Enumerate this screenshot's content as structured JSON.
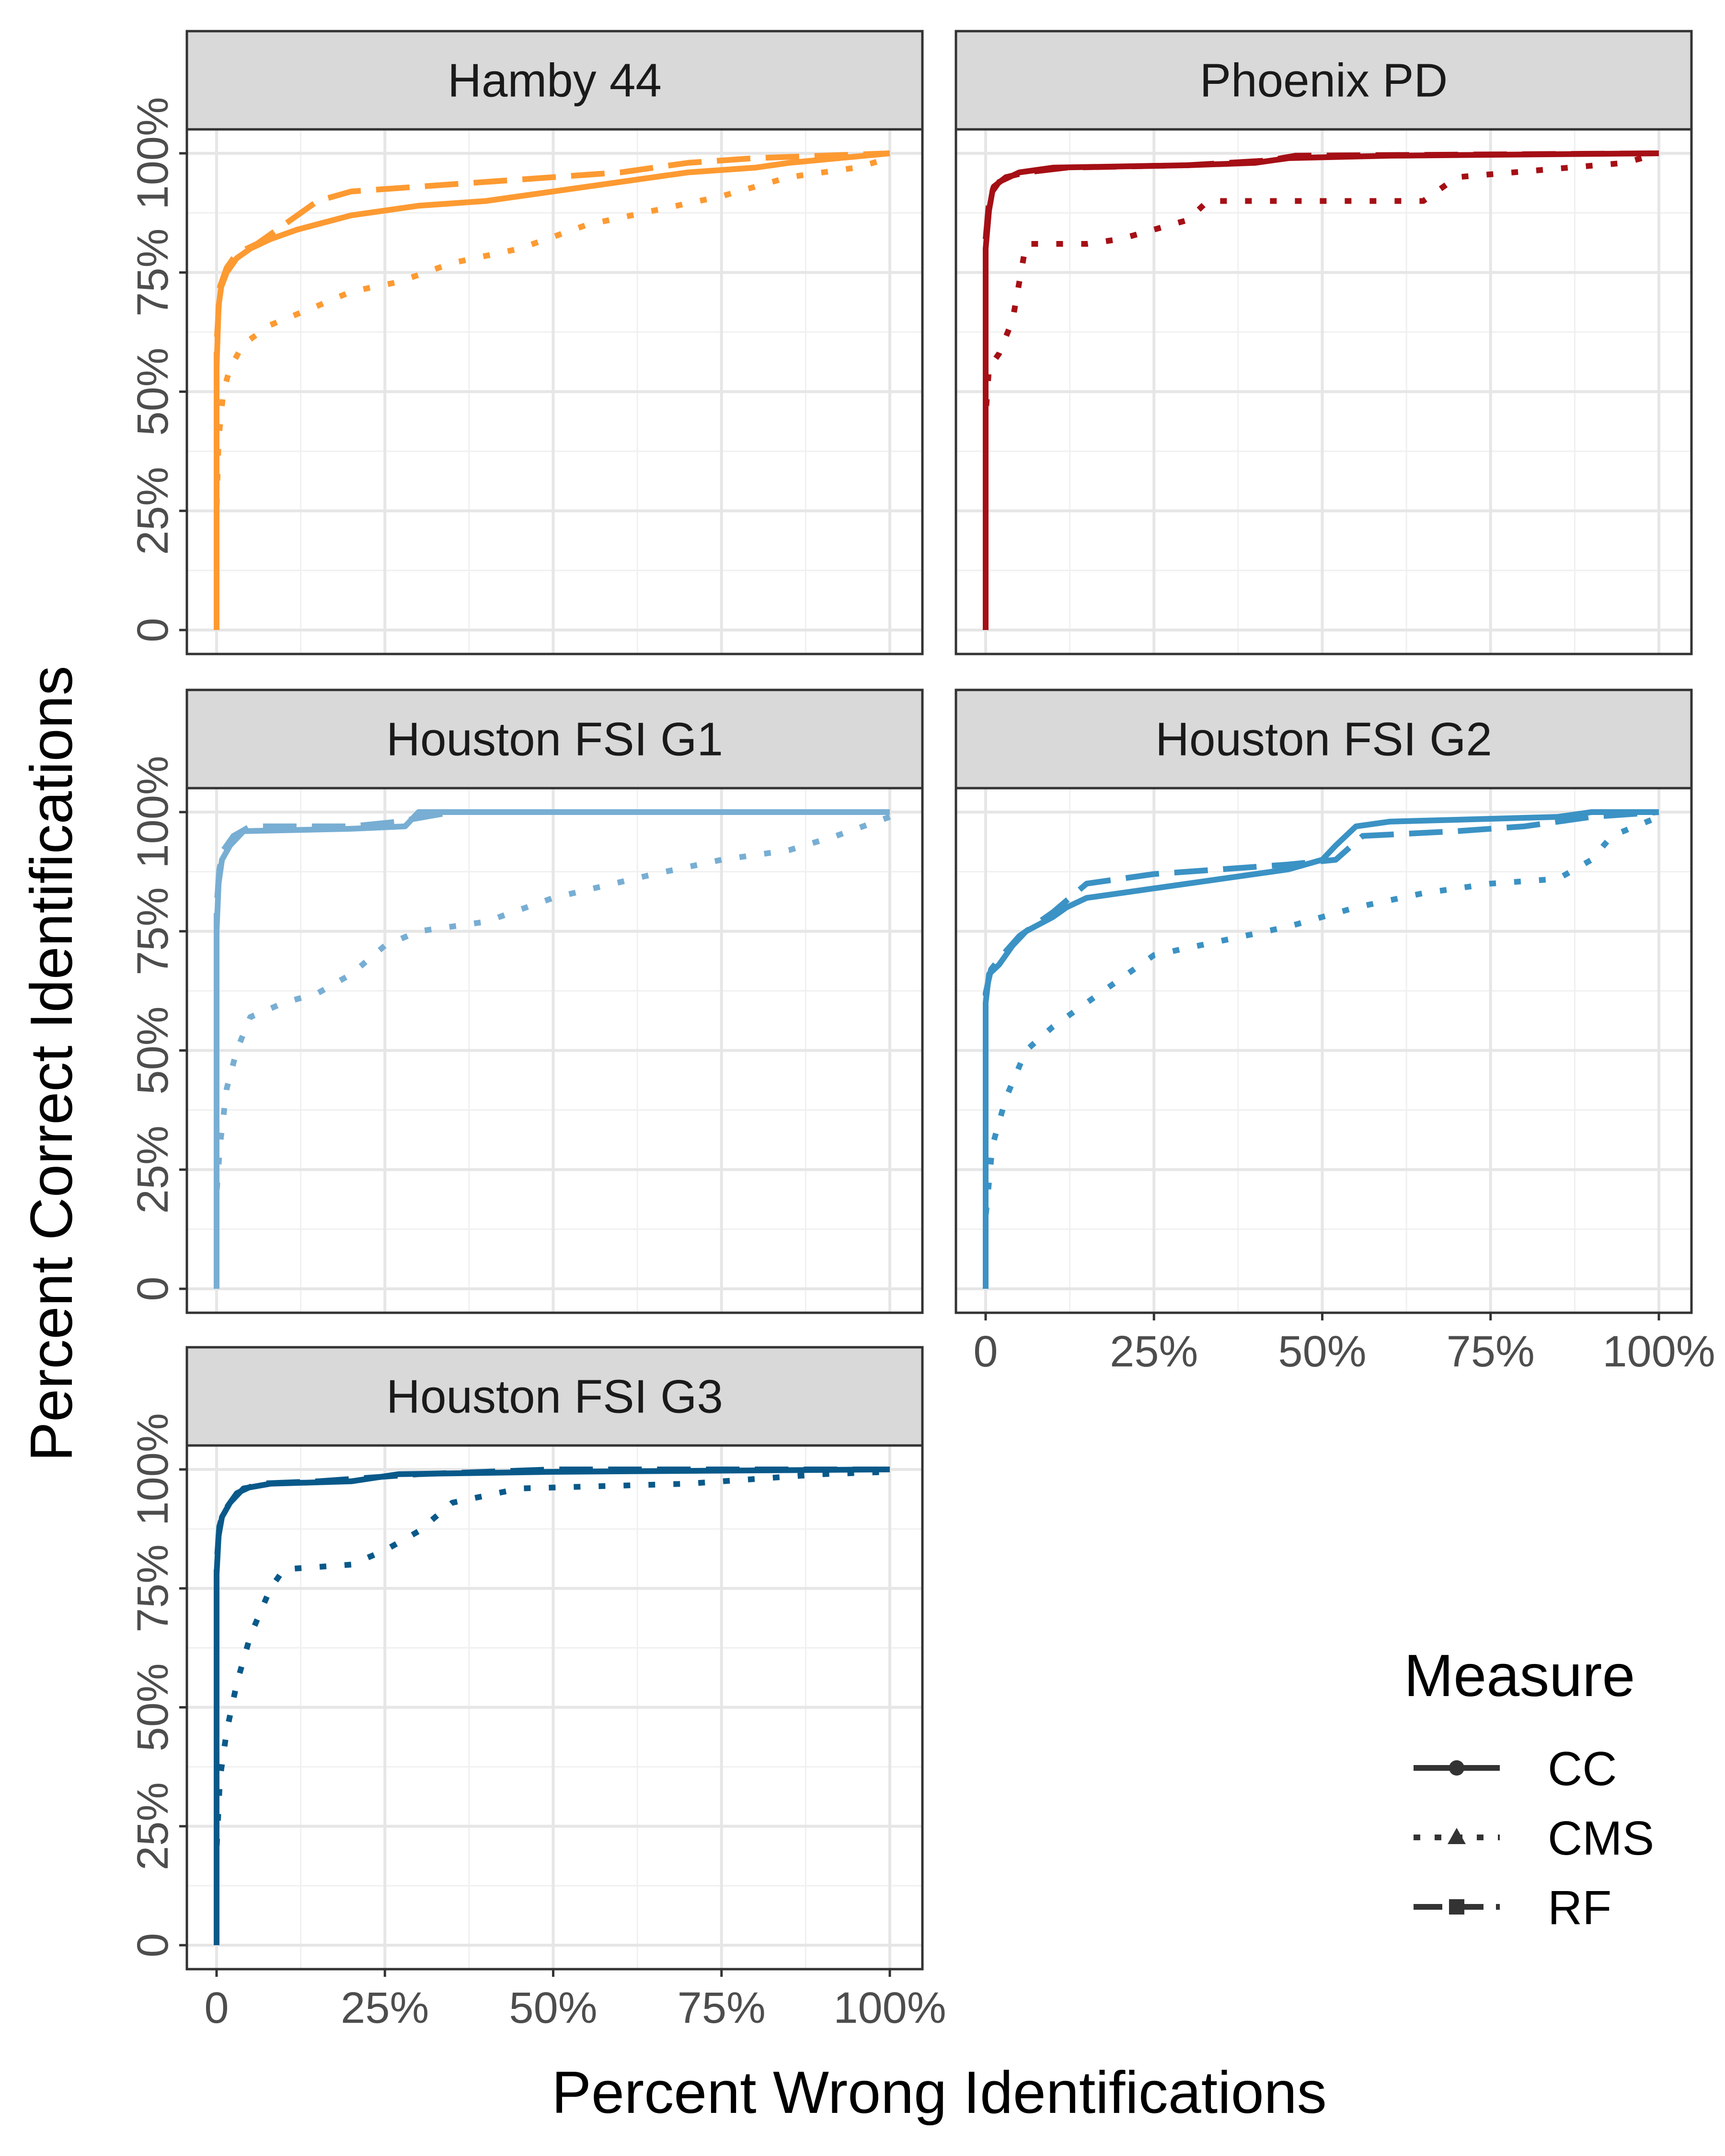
{
  "chart_data": {
    "type": "line",
    "xlabel": "Percent Wrong Identifications",
    "ylabel": "Percent Correct Identifications",
    "xlim": [
      0,
      1
    ],
    "ylim": [
      0,
      1
    ],
    "x_tick_values": [
      0,
      0.25,
      0.5,
      0.75,
      1
    ],
    "x_tick_labels": [
      "0",
      "25%",
      "50%",
      "75%",
      "100%"
    ],
    "y_tick_values": [
      0,
      0.25,
      0.5,
      0.75,
      1
    ],
    "y_tick_labels": [
      "0",
      "25%",
      "50%",
      "75%",
      "100%"
    ],
    "grid": true,
    "legend": {
      "title": "Measure",
      "position": "bottom-right",
      "entries": [
        {
          "label": "CC",
          "linestyle": "solid",
          "marker": "circle"
        },
        {
          "label": "CMS",
          "linestyle": "dotted",
          "marker": "triangle"
        },
        {
          "label": "RF",
          "linestyle": "dashed",
          "marker": "square"
        }
      ]
    },
    "panels": [
      {
        "title": "Hamby 44",
        "color": "#FD9A32",
        "series": [
          {
            "name": "CC",
            "points": [
              [
                0,
                0
              ],
              [
                0,
                0.55
              ],
              [
                0.003,
                0.68
              ],
              [
                0.007,
                0.72
              ],
              [
                0.015,
                0.75
              ],
              [
                0.03,
                0.78
              ],
              [
                0.05,
                0.8
              ],
              [
                0.08,
                0.82
              ],
              [
                0.12,
                0.84
              ],
              [
                0.2,
                0.87
              ],
              [
                0.3,
                0.89
              ],
              [
                0.4,
                0.9
              ],
              [
                0.5,
                0.92
              ],
              [
                0.6,
                0.94
              ],
              [
                0.7,
                0.96
              ],
              [
                0.8,
                0.97
              ],
              [
                0.85,
                0.98
              ],
              [
                1,
                1
              ]
            ]
          },
          {
            "name": "CMS",
            "points": [
              [
                0,
                0
              ],
              [
                0,
                0.25
              ],
              [
                0.003,
                0.4
              ],
              [
                0.01,
                0.5
              ],
              [
                0.02,
                0.55
              ],
              [
                0.04,
                0.6
              ],
              [
                0.08,
                0.64
              ],
              [
                0.15,
                0.68
              ],
              [
                0.2,
                0.71
              ],
              [
                0.27,
                0.73
              ],
              [
                0.35,
                0.77
              ],
              [
                0.45,
                0.8
              ],
              [
                0.55,
                0.85
              ],
              [
                0.65,
                0.88
              ],
              [
                0.75,
                0.91
              ],
              [
                0.85,
                0.95
              ],
              [
                0.95,
                0.97
              ],
              [
                1,
                0.99
              ]
            ]
          },
          {
            "name": "RF",
            "points": [
              [
                0,
                0
              ],
              [
                0,
                0.6
              ],
              [
                0.005,
                0.72
              ],
              [
                0.015,
                0.76
              ],
              [
                0.03,
                0.79
              ],
              [
                0.06,
                0.81
              ],
              [
                0.1,
                0.85
              ],
              [
                0.15,
                0.9
              ],
              [
                0.2,
                0.92
              ],
              [
                0.3,
                0.93
              ],
              [
                0.4,
                0.94
              ],
              [
                0.5,
                0.95
              ],
              [
                0.6,
                0.96
              ],
              [
                0.7,
                0.98
              ],
              [
                0.8,
                0.99
              ],
              [
                1,
                1
              ]
            ]
          }
        ]
      },
      {
        "title": "Phoenix PD",
        "color": "#A50F15",
        "series": [
          {
            "name": "CC",
            "points": [
              [
                0,
                0
              ],
              [
                0,
                0.8
              ],
              [
                0.005,
                0.88
              ],
              [
                0.01,
                0.92
              ],
              [
                0.02,
                0.94
              ],
              [
                0.05,
                0.96
              ],
              [
                0.1,
                0.97
              ],
              [
                0.3,
                0.975
              ],
              [
                0.4,
                0.98
              ],
              [
                0.45,
                0.99
              ],
              [
                0.6,
                0.995
              ],
              [
                1,
                1
              ]
            ]
          },
          {
            "name": "CMS",
            "points": [
              [
                0,
                0
              ],
              [
                0,
                0.45
              ],
              [
                0.005,
                0.55
              ],
              [
                0.02,
                0.58
              ],
              [
                0.04,
                0.65
              ],
              [
                0.06,
                0.81
              ],
              [
                0.15,
                0.81
              ],
              [
                0.2,
                0.82
              ],
              [
                0.3,
                0.86
              ],
              [
                0.33,
                0.9
              ],
              [
                0.65,
                0.9
              ],
              [
                0.7,
                0.95
              ],
              [
                0.95,
                0.98
              ],
              [
                1,
                1
              ]
            ]
          },
          {
            "name": "RF",
            "points": [
              [
                0,
                0
              ],
              [
                0,
                0.82
              ],
              [
                0.005,
                0.9
              ],
              [
                0.012,
                0.93
              ],
              [
                0.03,
                0.95
              ],
              [
                0.06,
                0.96
              ],
              [
                0.12,
                0.97
              ],
              [
                0.3,
                0.975
              ],
              [
                0.42,
                0.985
              ],
              [
                0.46,
                0.995
              ],
              [
                1,
                1
              ]
            ]
          }
        ]
      },
      {
        "title": "Houston FSI G1",
        "color": "#78AED3",
        "series": [
          {
            "name": "CC",
            "points": [
              [
                0,
                0
              ],
              [
                0,
                0.75
              ],
              [
                0.003,
                0.85
              ],
              [
                0.008,
                0.9
              ],
              [
                0.02,
                0.93
              ],
              [
                0.04,
                0.96
              ],
              [
                0.2,
                0.965
              ],
              [
                0.28,
                0.97
              ],
              [
                0.3,
                1
              ],
              [
                1,
                1
              ]
            ]
          },
          {
            "name": "CMS",
            "points": [
              [
                0,
                0
              ],
              [
                0,
                0.2
              ],
              [
                0.005,
                0.3
              ],
              [
                0.015,
                0.42
              ],
              [
                0.03,
                0.5
              ],
              [
                0.05,
                0.57
              ],
              [
                0.1,
                0.6
              ],
              [
                0.15,
                0.62
              ],
              [
                0.2,
                0.66
              ],
              [
                0.25,
                0.72
              ],
              [
                0.3,
                0.75
              ],
              [
                0.4,
                0.77
              ],
              [
                0.5,
                0.82
              ],
              [
                0.65,
                0.87
              ],
              [
                0.75,
                0.9
              ],
              [
                0.85,
                0.92
              ],
              [
                0.92,
                0.95
              ],
              [
                1,
                0.99
              ]
            ]
          },
          {
            "name": "RF",
            "points": [
              [
                0,
                0
              ],
              [
                0,
                0.8
              ],
              [
                0.004,
                0.88
              ],
              [
                0.01,
                0.92
              ],
              [
                0.025,
                0.95
              ],
              [
                0.05,
                0.97
              ],
              [
                0.2,
                0.97
              ],
              [
                0.27,
                0.98
              ],
              [
                0.35,
                1
              ],
              [
                1,
                1
              ]
            ]
          }
        ]
      },
      {
        "title": "Houston FSI G2",
        "color": "#3B92C4",
        "series": [
          {
            "name": "CC",
            "points": [
              [
                0,
                0
              ],
              [
                0,
                0.6
              ],
              [
                0.005,
                0.66
              ],
              [
                0.02,
                0.68
              ],
              [
                0.04,
                0.72
              ],
              [
                0.06,
                0.75
              ],
              [
                0.1,
                0.78
              ],
              [
                0.12,
                0.8
              ],
              [
                0.15,
                0.82
              ],
              [
                0.25,
                0.84
              ],
              [
                0.35,
                0.86
              ],
              [
                0.45,
                0.88
              ],
              [
                0.5,
                0.9
              ],
              [
                0.52,
                0.93
              ],
              [
                0.55,
                0.97
              ],
              [
                0.6,
                0.98
              ],
              [
                0.85,
                0.99
              ],
              [
                0.9,
                1
              ],
              [
                1,
                1
              ]
            ]
          },
          {
            "name": "CMS",
            "points": [
              [
                0,
                0
              ],
              [
                0,
                0.15
              ],
              [
                0.01,
                0.3
              ],
              [
                0.03,
                0.4
              ],
              [
                0.06,
                0.5
              ],
              [
                0.1,
                0.55
              ],
              [
                0.15,
                0.6
              ],
              [
                0.2,
                0.65
              ],
              [
                0.25,
                0.7
              ],
              [
                0.35,
                0.73
              ],
              [
                0.45,
                0.76
              ],
              [
                0.55,
                0.8
              ],
              [
                0.65,
                0.83
              ],
              [
                0.75,
                0.85
              ],
              [
                0.85,
                0.86
              ],
              [
                0.9,
                0.9
              ],
              [
                0.93,
                0.95
              ],
              [
                1,
                0.99
              ]
            ]
          },
          {
            "name": "RF",
            "points": [
              [
                0,
                0
              ],
              [
                0,
                0.62
              ],
              [
                0.008,
                0.67
              ],
              [
                0.025,
                0.7
              ],
              [
                0.05,
                0.74
              ],
              [
                0.1,
                0.79
              ],
              [
                0.15,
                0.85
              ],
              [
                0.25,
                0.87
              ],
              [
                0.35,
                0.88
              ],
              [
                0.45,
                0.89
              ],
              [
                0.52,
                0.9
              ],
              [
                0.56,
                0.95
              ],
              [
                0.7,
                0.96
              ],
              [
                0.8,
                0.97
              ],
              [
                0.85,
                0.98
              ],
              [
                0.9,
                0.99
              ],
              [
                1,
                1
              ]
            ]
          }
        ]
      },
      {
        "title": "Houston FSI G3",
        "color": "#08598A",
        "series": [
          {
            "name": "CC",
            "points": [
              [
                0,
                0
              ],
              [
                0,
                0.78
              ],
              [
                0.003,
                0.86
              ],
              [
                0.008,
                0.9
              ],
              [
                0.02,
                0.93
              ],
              [
                0.04,
                0.96
              ],
              [
                0.08,
                0.97
              ],
              [
                0.2,
                0.975
              ],
              [
                0.27,
                0.99
              ],
              [
                0.5,
                0.995
              ],
              [
                1,
                1
              ]
            ]
          },
          {
            "name": "CMS",
            "points": [
              [
                0,
                0
              ],
              [
                0,
                0.2
              ],
              [
                0.005,
                0.35
              ],
              [
                0.015,
                0.45
              ],
              [
                0.03,
                0.55
              ],
              [
                0.05,
                0.65
              ],
              [
                0.08,
                0.75
              ],
              [
                0.1,
                0.79
              ],
              [
                0.2,
                0.8
              ],
              [
                0.25,
                0.83
              ],
              [
                0.3,
                0.87
              ],
              [
                0.35,
                0.93
              ],
              [
                0.45,
                0.96
              ],
              [
                0.7,
                0.97
              ],
              [
                0.8,
                0.98
              ],
              [
                0.9,
                0.99
              ],
              [
                1,
                0.995
              ]
            ]
          },
          {
            "name": "RF",
            "points": [
              [
                0,
                0
              ],
              [
                0,
                0.8
              ],
              [
                0.004,
                0.88
              ],
              [
                0.01,
                0.91
              ],
              [
                0.03,
                0.95
              ],
              [
                0.06,
                0.97
              ],
              [
                0.15,
                0.975
              ],
              [
                0.25,
                0.985
              ],
              [
                0.3,
                0.99
              ],
              [
                0.5,
                1
              ],
              [
                1,
                1
              ]
            ]
          }
        ]
      }
    ]
  }
}
